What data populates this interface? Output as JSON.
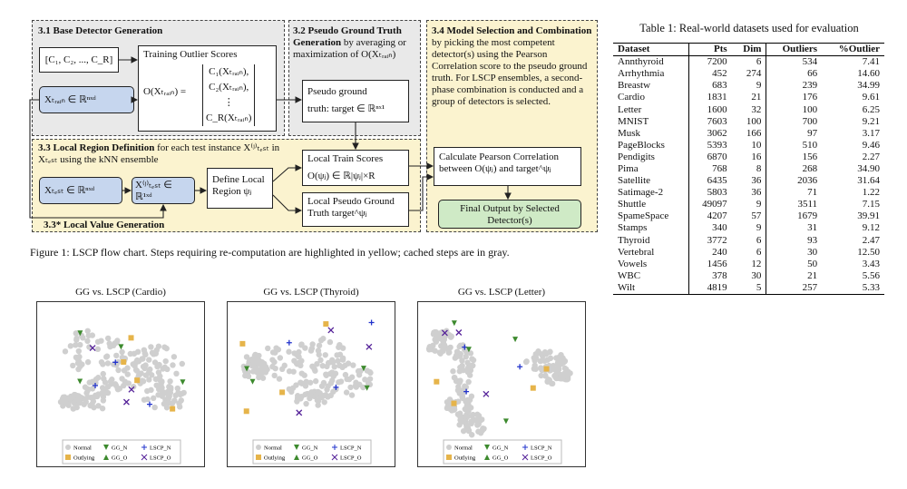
{
  "flowchart": {
    "s31": {
      "title": "3.1 Base Detector Generation",
      "detectors": "[C₁, C₂, ..., C_R]",
      "scores_title": "Training Outlier Scores",
      "scores_lhs": "O(Xₜᵣₐᵢₙ) =",
      "scores_rows": [
        "C₁(Xₜᵣₐᵢₙ),",
        "C₂(Xₜᵣₐᵢₙ),",
        "⋮",
        "C_R(Xₜᵣₐᵢₙ)"
      ],
      "xtrain": "Xₜᵣₐᵢₙ ∈ ℝⁿˣᵈ"
    },
    "s32": {
      "title": "3.2 Pseudo Ground Truth Generation",
      "text": "by averaging or maximization of O(Xₜᵣₐᵢₙ)",
      "box_line1": "Pseudo ground",
      "box_line2": "truth: target ∈ ℝⁿˣ¹"
    },
    "s33": {
      "title": "3.3 Local Region Definition",
      "text": "for each test instance X⁽ʲ⁾ₜₑₛₜ in Xₜₑₛₜ using the kNN ensemble",
      "xtest": "Xₜₑₛₜ ∈ ℝⁿˣᵈ",
      "xtest_j": "X⁽ʲ⁾ₜₑₛₜ ∈ ℝ¹ˣᵈ",
      "define": "Define Local Region ψⱼ",
      "local_scores_title": "Local Train Scores",
      "local_scores": "O(ψⱼ) ∈ ℝ|ψⱼ|×R",
      "local_gt": "Local Pseudo Ground Truth target^ψⱼ",
      "value_gen": "3.3* Local Value Generation"
    },
    "s34": {
      "title": "3.4 Model Selection and Combination",
      "text": "by picking the most competent detector(s) using the Pearson Correlation score to the pseudo ground truth. For LSCP ensembles, a second-phase combination is conducted and a group of detectors is selected.",
      "pearson": "Calculate Pearson Correlation between O(ψⱼ) and target^ψⱼ",
      "final": "Final Output by Selected Detector(s)"
    }
  },
  "figure_caption": "Figure 1: LSCP flow chart. Steps requiring re-computation are highlighted in yellow; cached steps are in gray.",
  "table": {
    "caption": "Table 1: Real-world datasets used for evaluation",
    "header": [
      "Dataset",
      "Pts",
      "Dim",
      "Outliers",
      "%Outlier"
    ],
    "rows": [
      [
        "Annthyroid",
        "7200",
        "6",
        "534",
        "7.41"
      ],
      [
        "Arrhythmia",
        "452",
        "274",
        "66",
        "14.60"
      ],
      [
        "Breastw",
        "683",
        "9",
        "239",
        "34.99"
      ],
      [
        "Cardio",
        "1831",
        "21",
        "176",
        "9.61"
      ],
      [
        "Letter",
        "1600",
        "32",
        "100",
        "6.25"
      ],
      [
        "MNIST",
        "7603",
        "100",
        "700",
        "9.21"
      ],
      [
        "Musk",
        "3062",
        "166",
        "97",
        "3.17"
      ],
      [
        "PageBlocks",
        "5393",
        "10",
        "510",
        "9.46"
      ],
      [
        "Pendigits",
        "6870",
        "16",
        "156",
        "2.27"
      ],
      [
        "Pima",
        "768",
        "8",
        "268",
        "34.90"
      ],
      [
        "Satellite",
        "6435",
        "36",
        "2036",
        "31.64"
      ],
      [
        "Satimage-2",
        "5803",
        "36",
        "71",
        "1.22"
      ],
      [
        "Shuttle",
        "49097",
        "9",
        "3511",
        "7.15"
      ],
      [
        "SpameSpace",
        "4207",
        "57",
        "1679",
        "39.91"
      ],
      [
        "Stamps",
        "340",
        "9",
        "31",
        "9.12"
      ],
      [
        "Thyroid",
        "3772",
        "6",
        "93",
        "2.47"
      ],
      [
        "Vertebral",
        "240",
        "6",
        "30",
        "12.50"
      ],
      [
        "Vowels",
        "1456",
        "12",
        "50",
        "3.43"
      ],
      [
        "WBC",
        "378",
        "30",
        "21",
        "5.56"
      ],
      [
        "Wilt",
        "4819",
        "5",
        "257",
        "5.33"
      ]
    ]
  },
  "plots": [
    {
      "title": "GG vs. LSCP (Cardio)"
    },
    {
      "title": "GG vs. LSCP (Thyroid)"
    },
    {
      "title": "GG vs. LSCP (Letter)"
    }
  ],
  "legend": [
    "Normal",
    "GG_N",
    "LSCP_N",
    "Outlying",
    "GG_O",
    "LSCP_O"
  ]
}
